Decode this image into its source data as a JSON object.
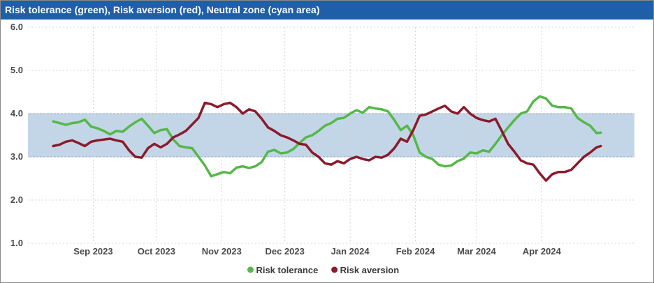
{
  "window": {
    "title": "Risk tolerance (green), Risk aversion (red), Neutral zone (cyan area)"
  },
  "colors": {
    "title_bar": "#1f5fa8",
    "risk_tolerance": "#55b848",
    "risk_aversion": "#8b1a2b",
    "neutral_zone": "#c2d6e8",
    "grid": "#d4d4d4"
  },
  "chart_data": {
    "type": "line",
    "title": "Risk tolerance (green), Risk aversion (red), Neutral zone (cyan area)",
    "xlabel": "",
    "ylabel": "",
    "ylim": [
      1.0,
      6.0
    ],
    "xlim": [
      "2023-08-01",
      "2024-05-15"
    ],
    "y_ticks": [
      "1.0",
      "2.0",
      "3.0",
      "4.0",
      "5.0",
      "6.0"
    ],
    "x_ticks": [
      {
        "date": "2023-09-01",
        "label": "Sep 2023"
      },
      {
        "date": "2023-10-01",
        "label": "Oct 2023"
      },
      {
        "date": "2023-11-01",
        "label": "Nov 2023"
      },
      {
        "date": "2023-12-01",
        "label": "Dec 2023"
      },
      {
        "date": "2024-01-01",
        "label": "Jan 2024"
      },
      {
        "date": "2024-02-01",
        "label": "Feb 2024"
      },
      {
        "date": "2024-03-01",
        "label": "Mar 2024"
      },
      {
        "date": "2024-04-01",
        "label": "Apr 2024"
      }
    ],
    "grid": true,
    "legend_position": "bottom-center",
    "neutral_zone": {
      "low": 3.0,
      "high": 4.0
    },
    "series": [
      {
        "name": "Risk tolerance",
        "color": "#55b848",
        "points": [
          [
            "2023-08-13",
            3.82
          ],
          [
            "2023-08-16",
            3.78
          ],
          [
            "2023-08-19",
            3.74
          ],
          [
            "2023-08-22",
            3.78
          ],
          [
            "2023-08-25",
            3.8
          ],
          [
            "2023-08-28",
            3.86
          ],
          [
            "2023-08-31",
            3.7
          ],
          [
            "2023-09-03",
            3.66
          ],
          [
            "2023-09-06",
            3.6
          ],
          [
            "2023-09-09",
            3.52
          ],
          [
            "2023-09-12",
            3.6
          ],
          [
            "2023-09-15",
            3.58
          ],
          [
            "2023-09-18",
            3.7
          ],
          [
            "2023-09-21",
            3.8
          ],
          [
            "2023-09-24",
            3.88
          ],
          [
            "2023-09-27",
            3.72
          ],
          [
            "2023-09-30",
            3.55
          ],
          [
            "2023-10-03",
            3.62
          ],
          [
            "2023-10-06",
            3.64
          ],
          [
            "2023-10-09",
            3.4
          ],
          [
            "2023-10-12",
            3.25
          ],
          [
            "2023-10-15",
            3.22
          ],
          [
            "2023-10-18",
            3.2
          ],
          [
            "2023-10-21",
            3.0
          ],
          [
            "2023-10-24",
            2.8
          ],
          [
            "2023-10-27",
            2.55
          ],
          [
            "2023-10-30",
            2.6
          ],
          [
            "2023-11-02",
            2.65
          ],
          [
            "2023-11-05",
            2.62
          ],
          [
            "2023-11-08",
            2.75
          ],
          [
            "2023-11-11",
            2.78
          ],
          [
            "2023-11-14",
            2.74
          ],
          [
            "2023-11-17",
            2.78
          ],
          [
            "2023-11-20",
            2.88
          ],
          [
            "2023-11-23",
            3.12
          ],
          [
            "2023-11-26",
            3.16
          ],
          [
            "2023-11-29",
            3.08
          ],
          [
            "2023-12-02",
            3.1
          ],
          [
            "2023-12-05",
            3.18
          ],
          [
            "2023-12-08",
            3.32
          ],
          [
            "2023-12-11",
            3.45
          ],
          [
            "2023-12-14",
            3.5
          ],
          [
            "2023-12-17",
            3.6
          ],
          [
            "2023-12-20",
            3.72
          ],
          [
            "2023-12-23",
            3.78
          ],
          [
            "2023-12-26",
            3.88
          ],
          [
            "2023-12-29",
            3.9
          ],
          [
            "2024-01-01",
            4.0
          ],
          [
            "2024-01-04",
            4.08
          ],
          [
            "2024-01-07",
            4.02
          ],
          [
            "2024-01-10",
            4.15
          ],
          [
            "2024-01-13",
            4.12
          ],
          [
            "2024-01-16",
            4.1
          ],
          [
            "2024-01-19",
            4.05
          ],
          [
            "2024-01-22",
            3.85
          ],
          [
            "2024-01-25",
            3.62
          ],
          [
            "2024-01-28",
            3.72
          ],
          [
            "2024-01-31",
            3.5
          ],
          [
            "2024-02-03",
            3.1
          ],
          [
            "2024-02-06",
            3.0
          ],
          [
            "2024-02-09",
            2.95
          ],
          [
            "2024-02-12",
            2.82
          ],
          [
            "2024-02-15",
            2.78
          ],
          [
            "2024-02-18",
            2.8
          ],
          [
            "2024-02-21",
            2.9
          ],
          [
            "2024-02-24",
            2.96
          ],
          [
            "2024-02-27",
            3.1
          ],
          [
            "2024-03-01",
            3.08
          ],
          [
            "2024-03-04",
            3.15
          ],
          [
            "2024-03-07",
            3.12
          ],
          [
            "2024-03-10",
            3.3
          ],
          [
            "2024-03-13",
            3.5
          ],
          [
            "2024-03-16",
            3.68
          ],
          [
            "2024-03-19",
            3.85
          ],
          [
            "2024-03-22",
            4.0
          ],
          [
            "2024-03-25",
            4.05
          ],
          [
            "2024-03-28",
            4.28
          ],
          [
            "2024-03-31",
            4.4
          ],
          [
            "2024-04-03",
            4.35
          ],
          [
            "2024-04-06",
            4.18
          ],
          [
            "2024-04-09",
            4.15
          ],
          [
            "2024-04-12",
            4.15
          ],
          [
            "2024-04-15",
            4.12
          ],
          [
            "2024-04-18",
            3.9
          ],
          [
            "2024-04-21",
            3.8
          ],
          [
            "2024-04-24",
            3.72
          ],
          [
            "2024-04-27",
            3.55
          ],
          [
            "2024-04-29",
            3.56
          ]
        ]
      },
      {
        "name": "Risk aversion",
        "color": "#8b1a2b",
        "points": [
          [
            "2023-08-13",
            3.25
          ],
          [
            "2023-08-16",
            3.28
          ],
          [
            "2023-08-19",
            3.35
          ],
          [
            "2023-08-22",
            3.38
          ],
          [
            "2023-08-25",
            3.32
          ],
          [
            "2023-08-28",
            3.25
          ],
          [
            "2023-08-31",
            3.35
          ],
          [
            "2023-09-03",
            3.38
          ],
          [
            "2023-09-06",
            3.4
          ],
          [
            "2023-09-09",
            3.42
          ],
          [
            "2023-09-12",
            3.38
          ],
          [
            "2023-09-15",
            3.35
          ],
          [
            "2023-09-18",
            3.15
          ],
          [
            "2023-09-21",
            3.0
          ],
          [
            "2023-09-24",
            2.98
          ],
          [
            "2023-09-27",
            3.2
          ],
          [
            "2023-09-30",
            3.3
          ],
          [
            "2023-10-03",
            3.22
          ],
          [
            "2023-10-06",
            3.3
          ],
          [
            "2023-10-09",
            3.45
          ],
          [
            "2023-10-12",
            3.52
          ],
          [
            "2023-10-15",
            3.6
          ],
          [
            "2023-10-18",
            3.75
          ],
          [
            "2023-10-21",
            3.9
          ],
          [
            "2023-10-24",
            4.25
          ],
          [
            "2023-10-27",
            4.22
          ],
          [
            "2023-10-30",
            4.15
          ],
          [
            "2023-11-02",
            4.22
          ],
          [
            "2023-11-05",
            4.25
          ],
          [
            "2023-11-08",
            4.15
          ],
          [
            "2023-11-11",
            4.0
          ],
          [
            "2023-11-14",
            4.1
          ],
          [
            "2023-11-17",
            4.05
          ],
          [
            "2023-11-20",
            3.88
          ],
          [
            "2023-11-23",
            3.68
          ],
          [
            "2023-11-26",
            3.6
          ],
          [
            "2023-11-29",
            3.5
          ],
          [
            "2023-12-02",
            3.45
          ],
          [
            "2023-12-05",
            3.38
          ],
          [
            "2023-12-08",
            3.3
          ],
          [
            "2023-12-11",
            3.28
          ],
          [
            "2023-12-14",
            3.1
          ],
          [
            "2023-12-17",
            3.0
          ],
          [
            "2023-12-20",
            2.85
          ],
          [
            "2023-12-23",
            2.82
          ],
          [
            "2023-12-26",
            2.9
          ],
          [
            "2023-12-29",
            2.85
          ],
          [
            "2024-01-01",
            2.95
          ],
          [
            "2024-01-04",
            3.0
          ],
          [
            "2024-01-07",
            2.95
          ],
          [
            "2024-01-10",
            2.92
          ],
          [
            "2024-01-13",
            3.0
          ],
          [
            "2024-01-16",
            2.98
          ],
          [
            "2024-01-19",
            3.05
          ],
          [
            "2024-01-22",
            3.2
          ],
          [
            "2024-01-25",
            3.42
          ],
          [
            "2024-01-28",
            3.35
          ],
          [
            "2024-01-31",
            3.62
          ],
          [
            "2024-02-03",
            3.95
          ],
          [
            "2024-02-06",
            3.98
          ],
          [
            "2024-02-09",
            4.05
          ],
          [
            "2024-02-12",
            4.12
          ],
          [
            "2024-02-15",
            4.18
          ],
          [
            "2024-02-18",
            4.05
          ],
          [
            "2024-02-21",
            4.0
          ],
          [
            "2024-02-24",
            4.15
          ],
          [
            "2024-02-27",
            4.0
          ],
          [
            "2024-03-01",
            3.9
          ],
          [
            "2024-03-04",
            3.85
          ],
          [
            "2024-03-07",
            3.82
          ],
          [
            "2024-03-10",
            3.88
          ],
          [
            "2024-03-13",
            3.6
          ],
          [
            "2024-03-16",
            3.3
          ],
          [
            "2024-03-19",
            3.12
          ],
          [
            "2024-03-22",
            2.92
          ],
          [
            "2024-03-25",
            2.85
          ],
          [
            "2024-03-28",
            2.82
          ],
          [
            "2024-03-31",
            2.62
          ],
          [
            "2024-04-03",
            2.45
          ],
          [
            "2024-04-06",
            2.6
          ],
          [
            "2024-04-09",
            2.65
          ],
          [
            "2024-04-12",
            2.65
          ],
          [
            "2024-04-15",
            2.7
          ],
          [
            "2024-04-18",
            2.85
          ],
          [
            "2024-04-21",
            3.0
          ],
          [
            "2024-04-24",
            3.1
          ],
          [
            "2024-04-27",
            3.22
          ],
          [
            "2024-04-29",
            3.25
          ]
        ]
      }
    ]
  }
}
